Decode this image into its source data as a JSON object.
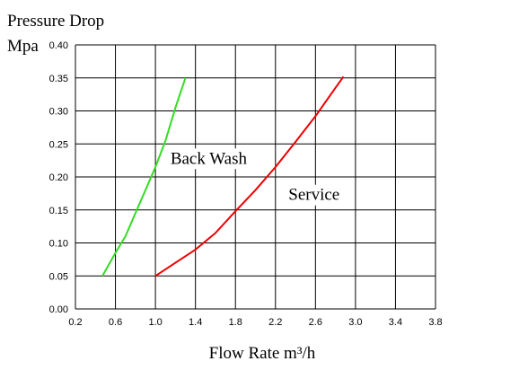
{
  "chart_data": {
    "type": "line",
    "title": "Pressure Drop",
    "ylabel": "Mpa",
    "xlabel": "Flow Rate m³/h",
    "xlim": [
      0.2,
      3.8
    ],
    "ylim": [
      0.0,
      0.4
    ],
    "x_ticks": [
      "0.2",
      "0.6",
      "1.0",
      "1.4",
      "1.8",
      "2.2",
      "2.6",
      "3.0",
      "3.4",
      "3.8"
    ],
    "y_ticks": [
      "0.00",
      "0.05",
      "0.10",
      "0.15",
      "0.20",
      "0.25",
      "0.30",
      "0.35",
      "0.40"
    ],
    "grid": true,
    "legend": "none",
    "series": [
      {
        "name": "Back Wash",
        "color": "#33dd22",
        "points": [
          [
            0.47,
            0.05
          ],
          [
            0.6,
            0.085
          ],
          [
            0.7,
            0.11
          ],
          [
            0.8,
            0.145
          ],
          [
            0.9,
            0.18
          ],
          [
            1.0,
            0.215
          ],
          [
            1.1,
            0.255
          ],
          [
            1.2,
            0.305
          ],
          [
            1.3,
            0.35
          ]
        ]
      },
      {
        "name": "Service",
        "color": "#ee0000",
        "points": [
          [
            1.0,
            0.05
          ],
          [
            1.2,
            0.07
          ],
          [
            1.4,
            0.09
          ],
          [
            1.6,
            0.115
          ],
          [
            1.8,
            0.148
          ],
          [
            2.0,
            0.18
          ],
          [
            2.2,
            0.215
          ],
          [
            2.4,
            0.253
          ],
          [
            2.6,
            0.292
          ],
          [
            2.8,
            0.335
          ],
          [
            2.88,
            0.352
          ]
        ]
      }
    ],
    "annotations": [
      {
        "text": "Back Wash",
        "x": 1.15,
        "y": 0.22
      },
      {
        "text": "Service",
        "x": 2.33,
        "y": 0.165
      }
    ]
  }
}
